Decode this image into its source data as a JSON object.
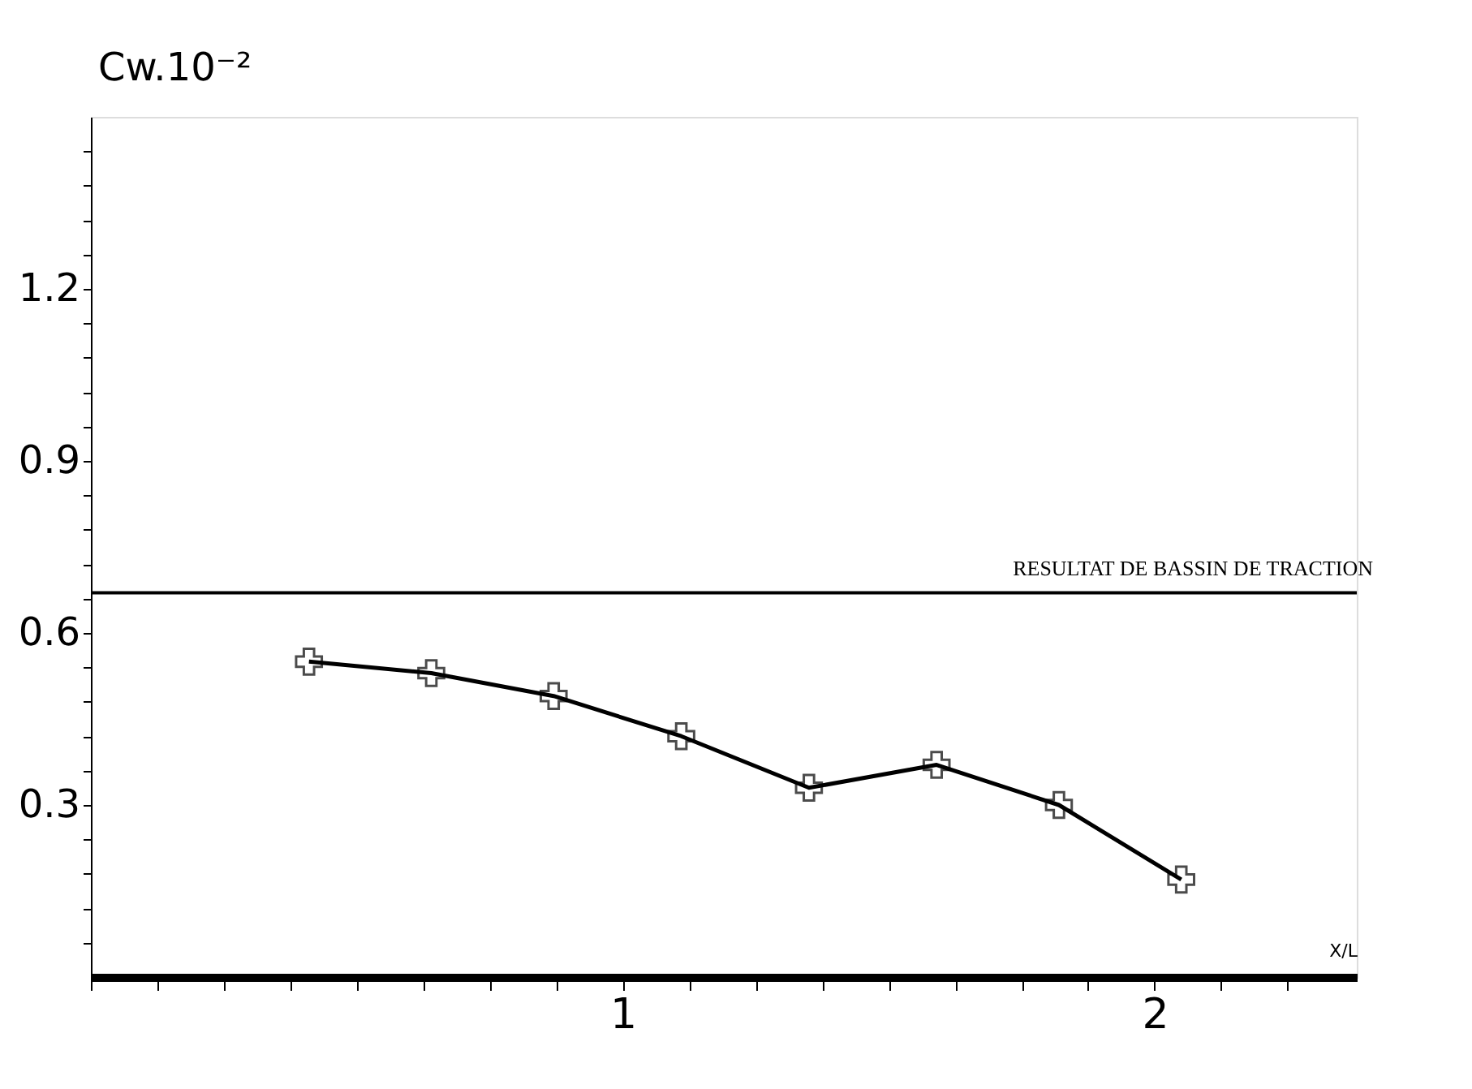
{
  "chart_data": {
    "type": "line",
    "ylabel": "Cw.10⁻²",
    "xlabel": "X/L",
    "x": [
      0.41,
      0.64,
      0.87,
      1.11,
      1.35,
      1.59,
      1.82,
      2.05
    ],
    "series": [
      {
        "color": "#000000",
        "values": [
          0.55,
          0.53,
          0.49,
          0.42,
          0.33,
          0.37,
          0.3,
          0.17
        ]
      }
    ],
    "marker": "cross",
    "line_style": "solid",
    "grid": false,
    "xlim": [
      0,
      2.38
    ],
    "ylim": [
      0,
      1.5
    ],
    "xticks": [
      {
        "value": 0,
        "label": null
      },
      {
        "value": 0.125,
        "label": null
      },
      {
        "value": 0.25,
        "label": null
      },
      {
        "value": 0.375,
        "label": null
      },
      {
        "value": 0.5,
        "label": null
      },
      {
        "value": 0.625,
        "label": null
      },
      {
        "value": 0.75,
        "label": null
      },
      {
        "value": 0.875,
        "label": null
      },
      1,
      {
        "value": 1.125,
        "label": null
      },
      {
        "value": 1.25,
        "label": null
      },
      {
        "value": 1.375,
        "label": null
      },
      {
        "value": 1.5,
        "label": null
      },
      {
        "value": 1.625,
        "label": null
      },
      {
        "value": 1.75,
        "label": null
      },
      {
        "value": 1.875,
        "label": null
      },
      2,
      {
        "value": 2.125,
        "label": null
      },
      {
        "value": 2.25,
        "label": null
      }
    ],
    "yticks": [
      {
        "value": 0.06,
        "label": null
      },
      {
        "value": 0.12,
        "label": null
      },
      {
        "value": 0.18,
        "label": null
      },
      {
        "value": 0.24,
        "label": null
      },
      0.3,
      {
        "value": 0.36,
        "label": null
      },
      {
        "value": 0.42,
        "label": null
      },
      {
        "value": 0.48,
        "label": null
      },
      {
        "value": 0.54,
        "label": null
      },
      0.6,
      {
        "value": 0.66,
        "label": null
      },
      {
        "value": 0.72,
        "label": null
      },
      {
        "value": 0.78,
        "label": null
      },
      {
        "value": 0.84,
        "label": null
      },
      0.9,
      {
        "value": 0.96,
        "label": null
      },
      {
        "value": 1.02,
        "label": null
      },
      {
        "value": 1.08,
        "label": null
      },
      {
        "value": 1.14,
        "label": null
      },
      1.2,
      {
        "value": 1.26,
        "label": null
      },
      {
        "value": 1.32,
        "label": null
      },
      {
        "value": 1.38,
        "label": null
      },
      {
        "value": 1.44,
        "label": null
      }
    ],
    "ref_lines": [
      {
        "axis": "y",
        "value": 0.67,
        "label": "RESULTAT DE BASSIN DE TRACTION",
        "color": "#000000"
      }
    ]
  }
}
